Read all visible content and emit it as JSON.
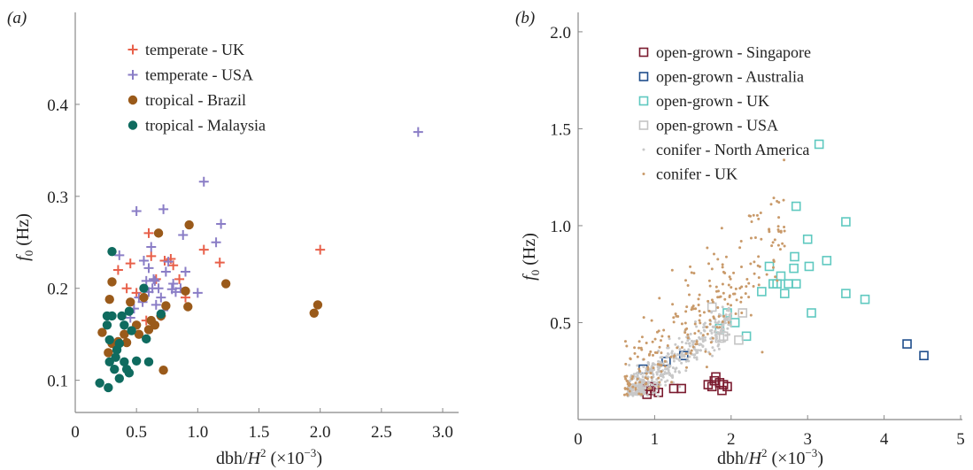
{
  "chart_data": [
    {
      "panel_label": "(a)",
      "type": "scatter",
      "xlabel": "dbh/H² (×10⁻³)",
      "ylabel": "f₀ (Hz)",
      "xlim": [
        0,
        3.0
      ],
      "ylim": [
        0.065,
        0.5
      ],
      "xticks": [
        0,
        0.5,
        1.0,
        1.5,
        2.0,
        2.5,
        3.0
      ],
      "xtick_labels": [
        "0",
        "0.5",
        "1.0",
        "1.5",
        "2.0",
        "2.5",
        "3.0"
      ],
      "yticks": [
        0.1,
        0.2,
        0.3,
        0.4
      ],
      "ytick_labels": [
        "0.1",
        "0.2",
        "0.3",
        "0.4"
      ],
      "legend_position": "top-center",
      "series": [
        {
          "name": "temperate - UK",
          "marker": "plus",
          "color": "#e8604a",
          "points": [
            [
              0.35,
              0.22
            ],
            [
              0.45,
              0.227
            ],
            [
              0.6,
              0.26
            ],
            [
              0.62,
              0.235
            ],
            [
              0.73,
              0.23
            ],
            [
              0.78,
              0.232
            ],
            [
              0.8,
              0.225
            ],
            [
              0.9,
              0.19
            ],
            [
              1.05,
              0.242
            ],
            [
              1.18,
              0.228
            ],
            [
              2.0,
              0.242
            ],
            [
              0.42,
              0.2
            ],
            [
              0.5,
              0.195
            ],
            [
              0.66,
              0.21
            ],
            [
              0.58,
              0.165
            ],
            [
              0.7,
              0.17
            ],
            [
              0.85,
              0.21
            ]
          ]
        },
        {
          "name": "temperate - USA",
          "marker": "plus",
          "color": "#8a7dc6",
          "points": [
            [
              0.36,
              0.236
            ],
            [
              0.5,
              0.284
            ],
            [
              0.56,
              0.23
            ],
            [
              0.6,
              0.222
            ],
            [
              0.62,
              0.245
            ],
            [
              0.65,
              0.208
            ],
            [
              0.68,
              0.2
            ],
            [
              0.72,
              0.286
            ],
            [
              0.74,
              0.218
            ],
            [
              0.76,
              0.229
            ],
            [
              0.79,
              0.199
            ],
            [
              0.82,
              0.196
            ],
            [
              0.88,
              0.258
            ],
            [
              0.9,
              0.218
            ],
            [
              1.05,
              0.316
            ],
            [
              1.15,
              0.25
            ],
            [
              1.19,
              0.27
            ],
            [
              1.0,
              0.195
            ],
            [
              2.8,
              0.37
            ],
            [
              0.45,
              0.168
            ],
            [
              0.52,
              0.19
            ],
            [
              0.55,
              0.185
            ],
            [
              0.6,
              0.196
            ],
            [
              0.64,
              0.21
            ],
            [
              0.66,
              0.182
            ],
            [
              0.7,
              0.19
            ],
            [
              0.63,
              0.2
            ],
            [
              0.48,
              0.178
            ],
            [
              0.58,
              0.208
            ],
            [
              0.72,
              0.176
            ],
            [
              0.8,
              0.205
            ],
            [
              0.86,
              0.2
            ]
          ]
        },
        {
          "name": "tropical - Brazil",
          "marker": "circle",
          "color": "#9a5a1a",
          "points": [
            [
              0.22,
              0.152
            ],
            [
              0.27,
              0.13
            ],
            [
              0.3,
              0.14
            ],
            [
              0.28,
              0.188
            ],
            [
              0.3,
              0.207
            ],
            [
              0.4,
              0.15
            ],
            [
              0.42,
              0.141
            ],
            [
              0.45,
              0.185
            ],
            [
              0.52,
              0.15
            ],
            [
              0.56,
              0.19
            ],
            [
              0.6,
              0.155
            ],
            [
              0.62,
              0.165
            ],
            [
              0.65,
              0.16
            ],
            [
              0.68,
              0.26
            ],
            [
              0.7,
              0.17
            ],
            [
              0.72,
              0.111
            ],
            [
              0.74,
              0.181
            ],
            [
              0.9,
              0.197
            ],
            [
              0.92,
              0.18
            ],
            [
              0.93,
              0.269
            ],
            [
              1.23,
              0.205
            ],
            [
              1.95,
              0.173
            ],
            [
              1.98,
              0.182
            ],
            [
              0.35,
              0.142
            ],
            [
              0.5,
              0.16
            ]
          ]
        },
        {
          "name": "tropical - Malaysia",
          "marker": "circle",
          "color": "#0f6b5f",
          "points": [
            [
              0.2,
              0.097
            ],
            [
              0.27,
              0.092
            ],
            [
              0.28,
              0.12
            ],
            [
              0.3,
              0.24
            ],
            [
              0.32,
              0.112
            ],
            [
              0.34,
              0.133
            ],
            [
              0.36,
              0.102
            ],
            [
              0.38,
              0.17
            ],
            [
              0.4,
              0.12
            ],
            [
              0.42,
              0.112
            ],
            [
              0.44,
              0.108
            ],
            [
              0.46,
              0.154
            ],
            [
              0.5,
              0.121
            ],
            [
              0.56,
              0.2
            ],
            [
              0.58,
              0.145
            ],
            [
              0.6,
              0.12
            ],
            [
              0.26,
              0.17
            ],
            [
              0.3,
              0.17
            ],
            [
              0.36,
              0.14
            ],
            [
              0.4,
              0.16
            ],
            [
              0.7,
              0.172
            ],
            [
              0.26,
              0.16
            ],
            [
              0.28,
              0.144
            ],
            [
              0.33,
              0.125
            ],
            [
              0.44,
              0.175
            ]
          ]
        }
      ]
    },
    {
      "panel_label": "(b)",
      "type": "scatter",
      "xlabel": "dbh/H² (×10⁻³)",
      "ylabel": "f₀ (Hz)",
      "xlim": [
        0,
        5
      ],
      "ylim": [
        0,
        2.1
      ],
      "xticks": [
        0,
        1,
        2,
        3,
        4,
        5
      ],
      "xtick_labels": [
        "0",
        "1",
        "2",
        "3",
        "4",
        "5"
      ],
      "yticks": [
        0.5,
        1.0,
        1.5,
        2.0
      ],
      "ytick_labels": [
        "0.5",
        "1.0",
        "1.5",
        "2.0"
      ],
      "legend_position": "top-left",
      "series": [
        {
          "name": "open-grown - Singapore",
          "marker": "square",
          "color": "#7a1a2e",
          "points": [
            [
              0.8,
              0.15
            ],
            [
              0.85,
              0.16
            ],
            [
              0.9,
              0.13
            ],
            [
              0.92,
              0.17
            ],
            [
              0.95,
              0.15
            ],
            [
              1.0,
              0.16
            ],
            [
              1.05,
              0.14
            ],
            [
              1.25,
              0.16
            ],
            [
              1.35,
              0.16
            ],
            [
              1.7,
              0.18
            ],
            [
              1.75,
              0.17
            ],
            [
              1.8,
              0.22
            ],
            [
              1.85,
              0.19
            ],
            [
              1.9,
              0.18
            ],
            [
              1.95,
              0.17
            ],
            [
              1.78,
              0.2
            ],
            [
              1.88,
              0.15
            ]
          ]
        },
        {
          "name": "open-grown - Australia",
          "marker": "square",
          "color": "#1f4e8c",
          "points": [
            [
              0.85,
              0.26
            ],
            [
              1.15,
              0.3
            ],
            [
              1.38,
              0.33
            ],
            [
              4.3,
              0.39
            ],
            [
              4.52,
              0.33
            ]
          ]
        },
        {
          "name": "open-grown - UK",
          "marker": "square",
          "color": "#5fc9c0",
          "points": [
            [
              1.85,
              0.47
            ],
            [
              1.95,
              0.55
            ],
            [
              2.05,
              0.5
            ],
            [
              2.2,
              0.43
            ],
            [
              2.4,
              0.66
            ],
            [
              2.5,
              0.79
            ],
            [
              2.55,
              0.7
            ],
            [
              2.6,
              0.7
            ],
            [
              2.65,
              0.74
            ],
            [
              2.7,
              0.65
            ],
            [
              2.75,
              0.7
            ],
            [
              2.82,
              0.78
            ],
            [
              2.83,
              0.84
            ],
            [
              2.85,
              0.7
            ],
            [
              2.85,
              1.1
            ],
            [
              3.0,
              0.93
            ],
            [
              3.02,
              0.79
            ],
            [
              3.05,
              0.55
            ],
            [
              3.15,
              1.42
            ],
            [
              3.25,
              0.82
            ],
            [
              3.5,
              1.02
            ],
            [
              3.5,
              0.65
            ],
            [
              3.75,
              0.62
            ]
          ]
        },
        {
          "name": "open-grown - USA",
          "marker": "square",
          "color": "#c4c4c4",
          "points": [
            [
              1.75,
              0.58
            ],
            [
              1.85,
              0.42
            ],
            [
              1.9,
              0.43
            ],
            [
              2.1,
              0.41
            ],
            [
              2.15,
              0.55
            ]
          ]
        },
        {
          "name": "conifer - North America",
          "marker": "dot",
          "color": "#c8c8c8",
          "description": "dense cloud of small dots spanning dbh/H² ≈ 0.6–2.0, f₀ ≈ 0.15–0.6"
        },
        {
          "name": "conifer - UK",
          "marker": "dot",
          "color": "#c99a6a",
          "description": "scattered small dots spanning dbh/H² ≈ 0.6–2.7, f₀ ≈ 0.2–1.1"
        }
      ]
    }
  ]
}
